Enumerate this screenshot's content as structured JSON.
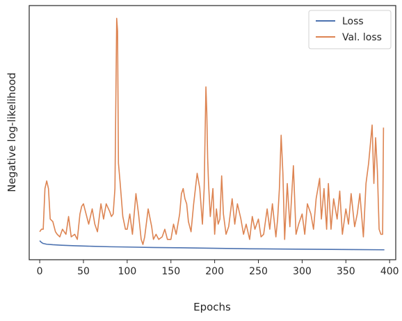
{
  "chart_data": {
    "type": "line",
    "title": "",
    "xlabel": "Epochs",
    "ylabel": "Negative log-likelihood",
    "xlim": [
      -12,
      407
    ],
    "ylim": [
      0,
      100
    ],
    "y_ticks_shown": false,
    "x_ticks": [
      0,
      50,
      100,
      150,
      200,
      250,
      300,
      350,
      400
    ],
    "x_tick_labels": [
      "0",
      "50",
      "100",
      "150",
      "200",
      "250",
      "300",
      "350",
      "400"
    ],
    "legend": {
      "position": "top-right",
      "entries": [
        "Loss",
        "Val. loss"
      ]
    },
    "grid": false,
    "series": [
      {
        "name": "Loss",
        "color": "#4c72b0",
        "x": [
          0,
          2,
          4,
          8,
          15,
          25,
          40,
          60,
          80,
          100,
          130,
          160,
          200,
          240,
          280,
          320,
          360,
          394
        ],
        "y": [
          7.5,
          6.8,
          6.4,
          6.1,
          5.9,
          5.7,
          5.5,
          5.3,
          5.1,
          5.0,
          4.8,
          4.7,
          4.5,
          4.3,
          4.2,
          4.1,
          4.0,
          3.9
        ]
      },
      {
        "name": "Val. loss",
        "color": "#dd8452",
        "x": [
          0,
          2,
          4,
          6,
          8,
          10,
          12,
          15,
          18,
          20,
          23,
          26,
          30,
          33,
          36,
          40,
          43,
          46,
          48,
          50,
          53,
          56,
          60,
          63,
          66,
          70,
          73,
          76,
          80,
          82,
          84,
          86,
          88,
          89,
          90,
          92,
          95,
          98,
          100,
          103,
          106,
          110,
          113,
          116,
          118,
          120,
          124,
          128,
          130,
          133,
          136,
          140,
          143,
          146,
          150,
          153,
          156,
          160,
          162,
          164,
          166,
          168,
          170,
          173,
          176,
          180,
          183,
          186,
          188,
          190,
          191,
          192,
          193,
          195,
          198,
          200,
          202,
          204,
          206,
          208,
          210,
          213,
          216,
          220,
          223,
          226,
          230,
          233,
          236,
          240,
          243,
          246,
          250,
          253,
          256,
          260,
          263,
          266,
          270,
          272,
          274,
          276,
          278,
          280,
          283,
          286,
          290,
          293,
          296,
          300,
          303,
          306,
          310,
          313,
          316,
          320,
          322,
          325,
          328,
          330,
          333,
          336,
          340,
          343,
          346,
          350,
          353,
          356,
          360,
          363,
          366,
          370,
          373,
          376,
          380,
          382,
          384,
          386,
          388,
          390,
          392,
          393
        ],
        "y": [
          11,
          12,
          12,
          28,
          31,
          28,
          16,
          15,
          11,
          10,
          9,
          12,
          10,
          17,
          9,
          10,
          8,
          18,
          21,
          22,
          18,
          14,
          20,
          14,
          11,
          22,
          16,
          22,
          19,
          17,
          18,
          28,
          95,
          90,
          38,
          30,
          17,
          12,
          12,
          18,
          10,
          26,
          18,
          8,
          6,
          9,
          20,
          13,
          8,
          10,
          8,
          9,
          12,
          8,
          8,
          14,
          10,
          18,
          26,
          28,
          24,
          22,
          15,
          11,
          22,
          34,
          28,
          14,
          28,
          68,
          58,
          40,
          30,
          17,
          28,
          10,
          20,
          14,
          16,
          33,
          18,
          10,
          13,
          24,
          14,
          22,
          16,
          10,
          14,
          8,
          17,
          12,
          16,
          9,
          10,
          20,
          12,
          22,
          9,
          16,
          28,
          49,
          34,
          8,
          30,
          13,
          37,
          10,
          14,
          18,
          10,
          22,
          18,
          12,
          24,
          32,
          16,
          28,
          12,
          30,
          12,
          24,
          16,
          27,
          10,
          20,
          14,
          26,
          13,
          18,
          26,
          9,
          30,
          38,
          53,
          30,
          48,
          35,
          12,
          10,
          10,
          52
        ]
      }
    ]
  }
}
